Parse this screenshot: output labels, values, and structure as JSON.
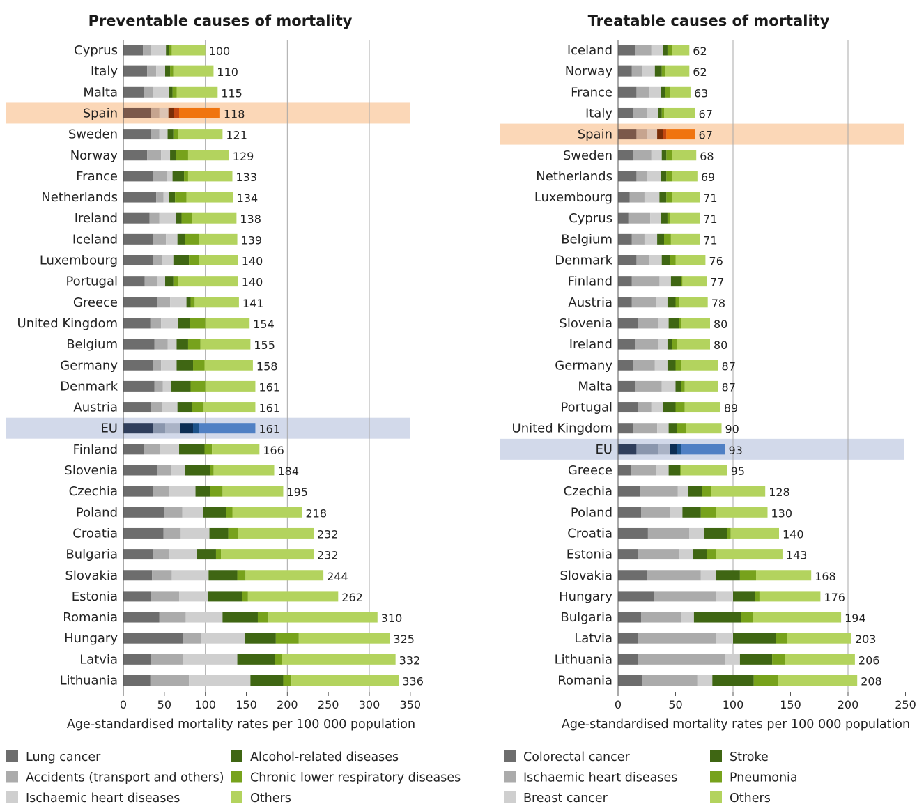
{
  "chart_data": [
    {
      "type": "bar",
      "orientation": "horizontal",
      "stacked": true,
      "title": "Preventable causes of mortality",
      "xlabel": "Age-standardised mortality rates per 100 000 population",
      "xlim": [
        0,
        350
      ],
      "xticks": [
        "0",
        "50",
        "100",
        "150",
        "200",
        "250",
        "300",
        "350"
      ],
      "grid": "vertical lines at 100, 200, 300",
      "legend_position": "bottom",
      "highlight": {
        "Spain": "#fbd7b7",
        "EU": "#d2d9ea"
      },
      "categories": [
        "Cyprus",
        "Italy",
        "Malta",
        "Spain",
        "Sweden",
        "Norway",
        "France",
        "Netherlands",
        "Ireland",
        "Iceland",
        "Luxembourg",
        "Portugal",
        "Greece",
        "United Kingdom",
        "Belgium",
        "Germany",
        "Denmark",
        "Austria",
        "EU",
        "Finland",
        "Slovenia",
        "Czechia",
        "Poland",
        "Croatia",
        "Bulgaria",
        "Slovakia",
        "Estonia",
        "Romania",
        "Hungary",
        "Latvia",
        "Lithuania"
      ],
      "totals": [
        "100",
        "110",
        "115",
        "118",
        "121",
        "129",
        "133",
        "134",
        "138",
        "139",
        "140",
        "140",
        "141",
        "154",
        "155",
        "158",
        "161",
        "161",
        "161",
        "166",
        "184",
        "195",
        "218",
        "232",
        "232",
        "244",
        "262",
        "310",
        "325",
        "332",
        "336"
      ],
      "series": [
        {
          "name": "Lung cancer",
          "color": "#6d6d6d",
          "values": [
            24,
            29,
            25,
            34,
            34,
            29,
            36,
            40,
            32,
            36,
            36,
            26,
            41,
            33,
            38,
            36,
            38,
            34,
            36,
            25,
            41,
            36,
            50,
            49,
            36,
            35,
            34,
            44,
            73,
            34,
            33
          ]
        },
        {
          "name": "Accidents (transport and others)",
          "color": "#ababab",
          "values": [
            10,
            11,
            11,
            10,
            10,
            17,
            17,
            9,
            12,
            16,
            11,
            15,
            16,
            13,
            16,
            10,
            10,
            13,
            15,
            20,
            17,
            20,
            22,
            21,
            20,
            24,
            34,
            32,
            22,
            39,
            47
          ]
        },
        {
          "name": "Ischaemic heart diseases",
          "color": "#cfcfcf",
          "values": [
            18,
            11,
            20,
            11,
            10,
            11,
            7,
            7,
            20,
            14,
            14,
            10,
            20,
            21,
            11,
            19,
            10,
            19,
            18,
            23,
            17,
            32,
            25,
            35,
            34,
            45,
            35,
            45,
            53,
            66,
            75
          ]
        },
        {
          "name": "Alcohol-related diseases",
          "color": "#3f6613",
          "values": [
            4,
            6,
            4,
            7,
            7,
            7,
            14,
            7,
            7,
            9,
            19,
            10,
            5,
            14,
            14,
            20,
            24,
            18,
            16,
            31,
            31,
            18,
            28,
            23,
            23,
            35,
            42,
            43,
            38,
            46,
            40
          ]
        },
        {
          "name": "Chronic lower respiratory diseases",
          "color": "#77a21c",
          "values": [
            3,
            4,
            5,
            6,
            6,
            15,
            5,
            14,
            13,
            17,
            12,
            6,
            5,
            19,
            15,
            14,
            18,
            14,
            7,
            9,
            4,
            15,
            8,
            12,
            6,
            10,
            7,
            13,
            28,
            8,
            10
          ]
        },
        {
          "name": "Others",
          "color": "#b3d35e",
          "values": [
            41,
            49,
            50,
            50,
            54,
            50,
            54,
            57,
            54,
            47,
            48,
            73,
            54,
            54,
            61,
            59,
            61,
            63,
            69,
            58,
            74,
            74,
            85,
            92,
            113,
            95,
            110,
            133,
            111,
            139,
            131
          ]
        }
      ]
    },
    {
      "type": "bar",
      "orientation": "horizontal",
      "stacked": true,
      "title": "Treatable causes of mortality",
      "xlabel": "Age-standardised mortality rates per 100 000 population",
      "xlim": [
        0,
        250
      ],
      "xticks": [
        "0",
        "50",
        "100",
        "150",
        "200",
        "250"
      ],
      "grid": "vertical lines at 100, 200",
      "legend_position": "bottom",
      "highlight": {
        "Spain": "#fbd7b7",
        "EU": "#d2d9ea"
      },
      "categories": [
        "Iceland",
        "Norway",
        "France",
        "Italy",
        "Spain",
        "Sweden",
        "Netherlands",
        "Luxembourg",
        "Cyprus",
        "Belgium",
        "Denmark",
        "Finland",
        "Austria",
        "Slovenia",
        "Ireland",
        "Germany",
        "Malta",
        "Portugal",
        "United Kingdom",
        "EU",
        "Greece",
        "Czechia",
        "Poland",
        "Croatia",
        "Estonia",
        "Slovakia",
        "Hungary",
        "Bulgaria",
        "Latvia",
        "Lithuania",
        "Romania"
      ],
      "totals": [
        "62",
        "62",
        "63",
        "67",
        "67",
        "68",
        "69",
        "71",
        "71",
        "71",
        "76",
        "77",
        "78",
        "80",
        "80",
        "87",
        "87",
        "89",
        "90",
        "93",
        "95",
        "128",
        "130",
        "140",
        "143",
        "168",
        "176",
        "194",
        "203",
        "206",
        "208"
      ],
      "series": [
        {
          "name": "Colorectal cancer",
          "color": "#6d6d6d",
          "values": [
            15,
            12,
            16,
            13,
            16,
            13,
            16,
            10,
            9,
            12,
            16,
            12,
            12,
            17,
            15,
            13,
            15,
            17,
            13,
            16,
            11,
            19,
            20,
            26,
            17,
            25,
            31,
            20,
            17,
            17,
            21
          ]
        },
        {
          "name": "Ischaemic heart diseases",
          "color": "#ababab",
          "values": [
            14,
            9,
            11,
            12,
            9,
            16,
            9,
            13,
            19,
            11,
            11,
            24,
            21,
            18,
            20,
            19,
            23,
            12,
            21,
            19,
            22,
            33,
            25,
            36,
            36,
            47,
            54,
            35,
            68,
            76,
            48
          ]
        },
        {
          "name": "Breast cancer",
          "color": "#cfcfcf",
          "values": [
            10,
            11,
            10,
            10,
            9,
            9,
            12,
            13,
            9,
            11,
            11,
            10,
            10,
            9,
            8,
            11,
            12,
            10,
            10,
            10,
            11,
            9,
            11,
            13,
            12,
            13,
            15,
            11,
            15,
            13,
            13
          ]
        },
        {
          "name": "Stroke",
          "color": "#3f6613",
          "values": [
            4,
            6,
            4,
            3,
            5,
            4,
            5,
            6,
            6,
            6,
            7,
            9,
            7,
            9,
            4,
            7,
            5,
            11,
            7,
            6,
            10,
            12,
            16,
            20,
            12,
            21,
            19,
            41,
            37,
            28,
            36
          ]
        },
        {
          "name": "Pneumonia",
          "color": "#77a21c",
          "values": [
            4,
            3,
            4,
            2,
            3,
            5,
            5,
            5,
            2,
            6,
            5,
            1,
            3,
            2,
            4,
            5,
            3,
            8,
            8,
            4,
            1,
            8,
            13,
            3,
            8,
            14,
            4,
            10,
            10,
            11,
            21
          ]
        },
        {
          "name": "Others",
          "color": "#b3d35e",
          "values": [
            15,
            21,
            18,
            27,
            25,
            21,
            22,
            24,
            26,
            25,
            26,
            21,
            25,
            25,
            29,
            32,
            29,
            31,
            31,
            38,
            40,
            47,
            45,
            42,
            58,
            48,
            53,
            77,
            56,
            61,
            69
          ]
        }
      ]
    }
  ]
}
